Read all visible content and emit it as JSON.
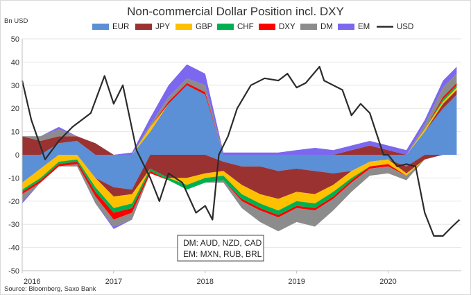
{
  "chart_data": {
    "type": "area",
    "title": "Non-commercial Dollar Position incl. DXY",
    "ylabel": "Bn USD",
    "source": "Source: Bloomberg, Saxo Bank",
    "ylim": [
      -50,
      50
    ],
    "yticks": [
      -50,
      -40,
      -30,
      -20,
      -10,
      0,
      10,
      20,
      30,
      40,
      50
    ],
    "xlim": [
      2016.0,
      2020.8
    ],
    "xticks": [
      "2016",
      "2017",
      "2018",
      "2019",
      "2020"
    ],
    "annotation": [
      "DM: AUD, NZD, CAD",
      "EM: MXN, RUB, BRL"
    ],
    "x": [
      2016.0,
      2016.2,
      2016.4,
      2016.6,
      2016.8,
      2017.0,
      2017.2,
      2017.4,
      2017.6,
      2017.8,
      2018.0,
      2018.2,
      2018.4,
      2018.6,
      2018.8,
      2019.0,
      2019.2,
      2019.4,
      2019.6,
      2019.8,
      2020.0,
      2020.2,
      2020.4,
      2020.6,
      2020.75
    ],
    "series": [
      {
        "name": "EUR",
        "color": "#5b8fd6",
        "values": [
          -12,
          -6,
          5,
          6,
          -10,
          -14,
          -15,
          10,
          22,
          30,
          26,
          -3,
          -5,
          -5,
          -7,
          -6,
          -7,
          -8,
          -7,
          -3,
          -2,
          -5,
          10,
          20,
          26
        ]
      },
      {
        "name": "JPY",
        "color": "#9b3232",
        "values": [
          8,
          6,
          3,
          2,
          5,
          -4,
          -2,
          -6,
          -10,
          -10,
          -8,
          -4,
          -8,
          -12,
          -12,
          -10,
          -10,
          -5,
          2,
          4,
          2,
          -3,
          -2,
          2,
          2
        ]
      },
      {
        "name": "GBP",
        "color": "#ffc000",
        "values": [
          -3,
          -4,
          -3,
          -2,
          -4,
          -5,
          -4,
          2,
          0,
          -3,
          -2,
          -2,
          -4,
          -4,
          -5,
          -4,
          -4,
          -3,
          -3,
          -2,
          -2,
          -1,
          1,
          1,
          1
        ]
      },
      {
        "name": "CHF",
        "color": "#00b050",
        "values": [
          -1,
          -1,
          -1,
          -1,
          -2,
          -2,
          -2,
          -1,
          -1,
          -2,
          -2,
          -2,
          -2,
          -2,
          -2,
          -2,
          -2,
          -2,
          -1,
          0,
          0,
          0,
          0,
          1,
          1
        ]
      },
      {
        "name": "DXY",
        "color": "#ff0000",
        "values": [
          -1,
          -1,
          -1,
          -1,
          -2,
          -3,
          -2,
          -1,
          1,
          1,
          1,
          0,
          -1,
          -1,
          -1,
          -1,
          -1,
          -1,
          -1,
          -1,
          -1,
          0,
          0,
          1,
          1
        ]
      },
      {
        "name": "DM",
        "color": "#8c8c8c",
        "values": [
          -3,
          2,
          3,
          -1,
          -3,
          -3,
          -3,
          1,
          2,
          2,
          3,
          -1,
          -3,
          -5,
          -6,
          -6,
          -7,
          -5,
          -4,
          -3,
          -3,
          -2,
          2,
          4,
          4
        ]
      },
      {
        "name": "EM",
        "color": "#7b68ee",
        "values": [
          -1,
          0,
          1,
          0,
          0,
          -1,
          1,
          3,
          5,
          6,
          5,
          1,
          1,
          1,
          1,
          2,
          3,
          2,
          2,
          2,
          2,
          2,
          2,
          3,
          3
        ]
      }
    ],
    "line": {
      "name": "USD",
      "color": "#2b2b2b",
      "x": [
        2016.0,
        2016.1,
        2016.25,
        2016.4,
        2016.55,
        2016.75,
        2016.9,
        2017.0,
        2017.1,
        2017.25,
        2017.4,
        2017.5,
        2017.6,
        2017.75,
        2017.9,
        2018.0,
        2018.08,
        2018.15,
        2018.25,
        2018.35,
        2018.5,
        2018.65,
        2018.8,
        2018.9,
        2019.0,
        2019.1,
        2019.25,
        2019.3,
        2019.4,
        2019.5,
        2019.6,
        2019.7,
        2019.8,
        2019.95,
        2020.0,
        2020.1,
        2020.2,
        2020.3,
        2020.4,
        2020.5,
        2020.6,
        2020.7,
        2020.78
      ],
      "values": [
        32,
        15,
        -2,
        6,
        12,
        18,
        34,
        22,
        30,
        2,
        -10,
        -20,
        -8,
        -12,
        -25,
        -22,
        -28,
        0,
        8,
        20,
        30,
        33,
        32,
        35,
        29,
        31,
        38,
        32,
        30,
        28,
        17,
        22,
        18,
        0,
        0,
        -5,
        -4,
        -5,
        -25,
        -35,
        -35,
        -31,
        -28
      ]
    },
    "legend_placement": "top"
  }
}
